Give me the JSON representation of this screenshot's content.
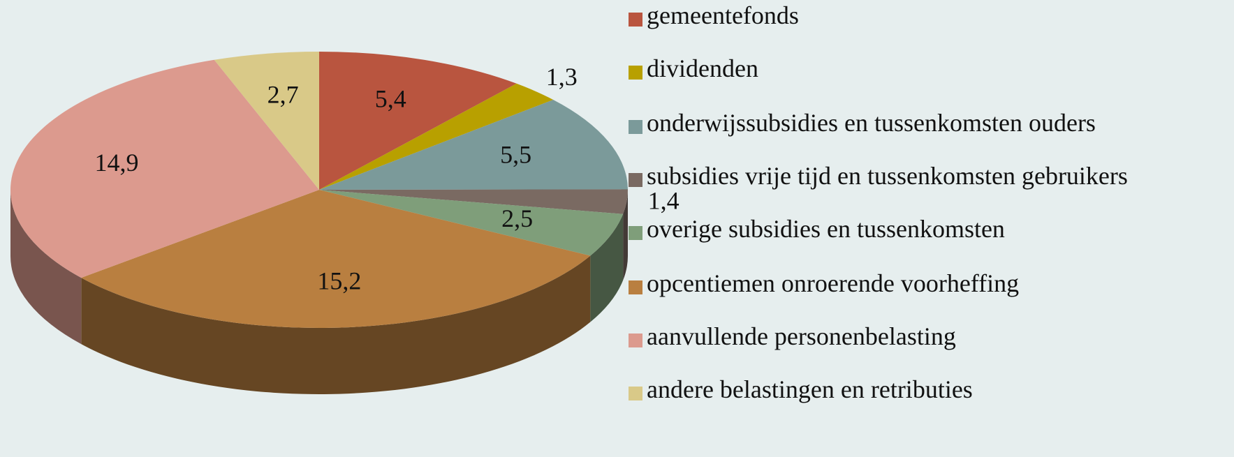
{
  "chart_data": {
    "type": "pie",
    "categories": [
      "gemeentefonds",
      "dividenden",
      "onderwijssubsidies en tussenkomsten ouders",
      "subsidies vrije tijd en tussenkomsten gebruikers",
      "overige subsidies en tussenkomsten",
      "opcentiemen onroerende voorheffing",
      "aanvullende personenbelasting",
      "andere belastingen en retributies"
    ],
    "values": [
      5.4,
      1.3,
      5.5,
      1.4,
      2.5,
      15.2,
      14.9,
      2.7
    ],
    "value_labels": [
      "5,4",
      "1,3",
      "5,5",
      "1,4",
      "2,5",
      "15,2",
      "14,9",
      "2,7"
    ],
    "colors": [
      "#b9553f",
      "#b8a000",
      "#7b9a9a",
      "#7a6a62",
      "#7f9e7a",
      "#b97f40",
      "#dc9a8e",
      "#d9c988"
    ],
    "legend": "right"
  }
}
